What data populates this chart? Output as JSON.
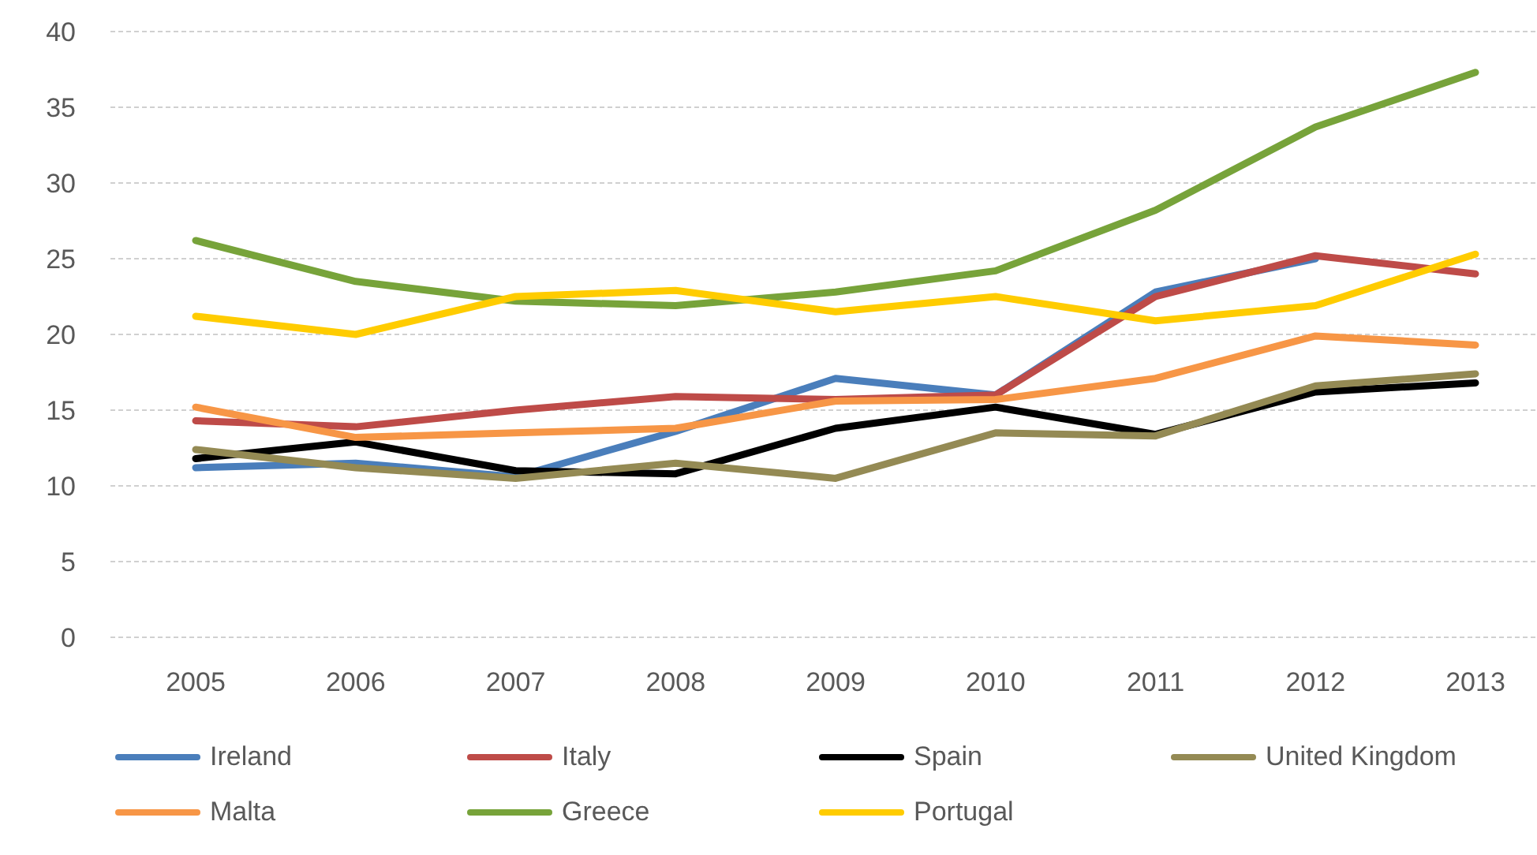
{
  "chart_data": {
    "type": "line",
    "categories": [
      "2005",
      "2006",
      "2007",
      "2008",
      "2009",
      "2010",
      "2011",
      "2012",
      "2013"
    ],
    "ylim": [
      0,
      40
    ],
    "yticks": [
      0,
      5,
      10,
      15,
      20,
      25,
      30,
      35,
      40
    ],
    "grid": "y",
    "legend": "bottom",
    "marker": "none",
    "line_style": "solid",
    "series": [
      {
        "name": "Ireland",
        "color": "#4a7ebb",
        "values": [
          11.2,
          11.5,
          10.6,
          13.6,
          17.1,
          16.0,
          22.8,
          25.0,
          null
        ]
      },
      {
        "name": "Italy",
        "color": "#be4b48",
        "values": [
          14.3,
          13.9,
          15.0,
          15.9,
          15.7,
          16.0,
          22.5,
          25.2,
          24.0
        ]
      },
      {
        "name": "Spain",
        "color": "#000000",
        "values": [
          11.8,
          12.9,
          11.0,
          10.8,
          13.8,
          15.2,
          13.4,
          16.2,
          16.8
        ]
      },
      {
        "name": "United Kingdom",
        "color": "#948a54",
        "values": [
          12.4,
          11.2,
          10.5,
          11.5,
          10.5,
          13.5,
          13.3,
          16.6,
          17.4
        ]
      },
      {
        "name": "Malta",
        "color": "#f79646",
        "values": [
          15.2,
          13.2,
          13.5,
          13.8,
          15.6,
          15.7,
          17.1,
          19.9,
          19.3
        ]
      },
      {
        "name": "Greece",
        "color": "#77a33a",
        "values": [
          26.2,
          23.5,
          22.2,
          21.9,
          22.8,
          24.2,
          28.2,
          33.7,
          37.3
        ]
      },
      {
        "name": "Portugal",
        "color": "#ffcc00",
        "values": [
          21.2,
          20.0,
          22.5,
          22.9,
          21.5,
          22.5,
          20.9,
          21.9,
          25.3
        ]
      }
    ]
  }
}
